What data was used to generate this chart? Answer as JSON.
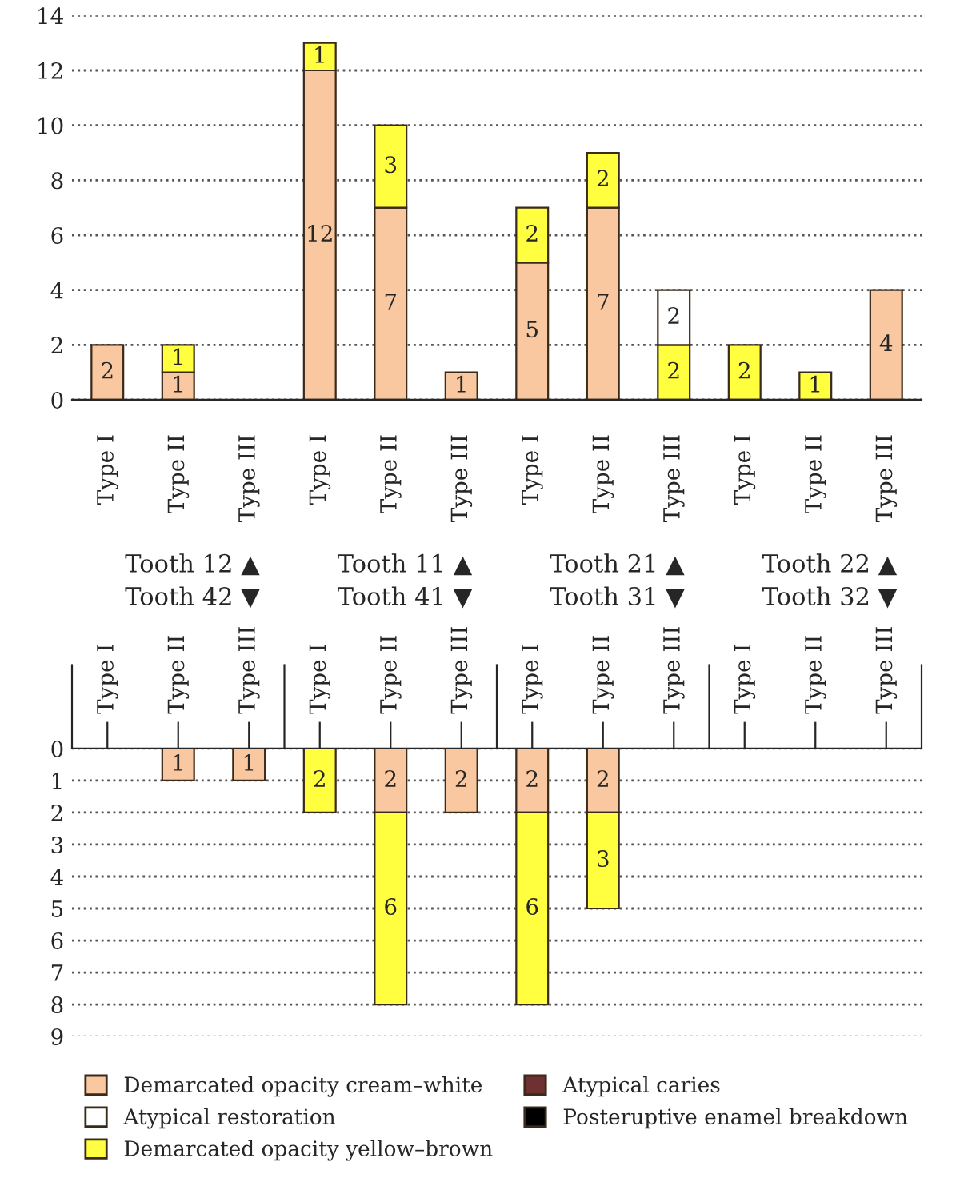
{
  "chart_data": [
    {
      "type": "bar",
      "stacked": true,
      "categories": [
        "Type I",
        "Type II",
        "Type III",
        "Type I",
        "Type II",
        "Type III",
        "Type I",
        "Type II",
        "Type III",
        "Type I",
        "Type II",
        "Type III"
      ],
      "series": [
        {
          "color": "#f9c8a0",
          "values": [
            2,
            1,
            null,
            12,
            7,
            1,
            5,
            7,
            null,
            null,
            null,
            4
          ]
        },
        {
          "color": "#ffff40",
          "values": [
            null,
            1,
            null,
            1,
            3,
            null,
            2,
            2,
            2,
            2,
            1,
            null
          ]
        },
        {
          "color": "#ffffff",
          "values": [
            null,
            null,
            null,
            null,
            null,
            null,
            null,
            null,
            2,
            null,
            null,
            null
          ]
        }
      ],
      "ylim": [
        0,
        14
      ],
      "yticks": [
        0,
        2,
        4,
        6,
        8,
        10,
        12,
        14
      ],
      "grid": "y",
      "data_labels": true,
      "legend": false,
      "annotations": [
        "Tooth 12 ▲\nTooth 42 ▼",
        "Tooth 11 ▲\nTooth 41 ▼",
        "Tooth 21 ▲\nTooth 31 ▼",
        "Tooth 22 ▲\nTooth 32 ▼"
      ]
    },
    {
      "type": "bar",
      "stacked": true,
      "categories": [
        "Type I",
        "Type II",
        "Type III",
        "Type I",
        "Type II",
        "Type III",
        "Type I",
        "Type II",
        "Type III",
        "Type I",
        "Type II",
        "Type III"
      ],
      "series": [
        {
          "name": "Demarcated opacity cream–white",
          "color": "#f9c8a0",
          "values": [
            null,
            1,
            1,
            null,
            2,
            2,
            2,
            2,
            null,
            null,
            null,
            null
          ]
        },
        {
          "name": "Atypical restoration",
          "color": "#ffffff",
          "values": [
            null,
            null,
            null,
            null,
            null,
            null,
            null,
            null,
            null,
            null,
            null,
            null
          ]
        },
        {
          "name": "Demarcated opacity yellow–brown",
          "color": "#ffff40",
          "values": [
            null,
            null,
            null,
            2,
            6,
            null,
            6,
            3,
            null,
            null,
            null,
            null
          ]
        },
        {
          "name": "Atypical caries",
          "color": "#6e3030",
          "values": [
            null,
            null,
            null,
            null,
            null,
            null,
            null,
            null,
            null,
            null,
            null,
            null
          ]
        },
        {
          "name": "Posteruptive enamel breakdown",
          "color": "#000000",
          "values": [
            null,
            null,
            null,
            null,
            null,
            null,
            null,
            null,
            null,
            null,
            null,
            null
          ]
        }
      ],
      "ylim": [
        9,
        0
      ],
      "yticks": [
        0,
        1,
        2,
        3,
        4,
        5,
        6,
        7,
        8,
        9
      ],
      "grid": "y",
      "data_labels": true,
      "legend": "bottom"
    }
  ]
}
